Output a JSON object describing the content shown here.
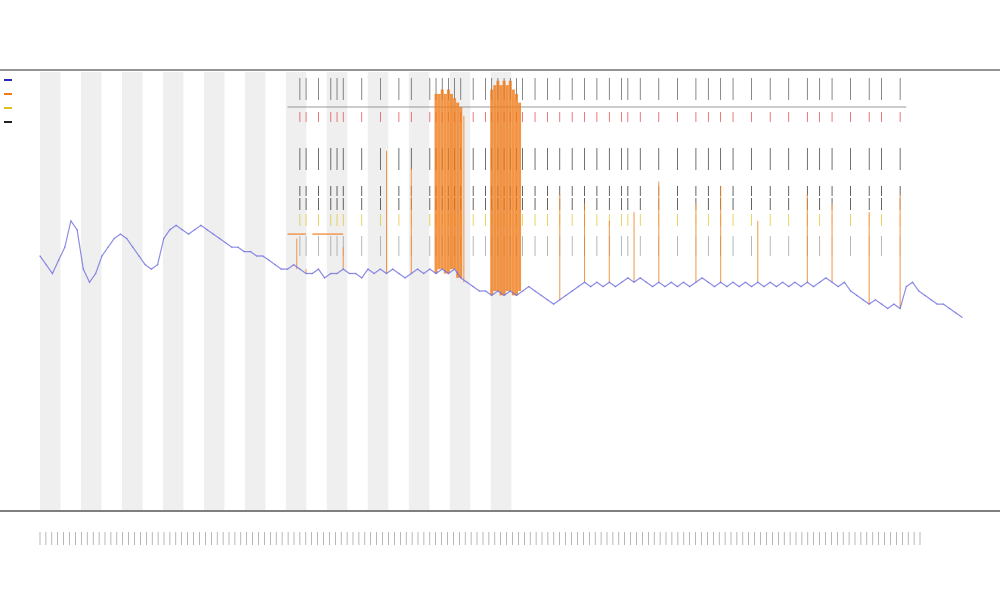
{
  "chart_data": {
    "type": "line",
    "title": "",
    "subtitle_1": "",
    "subtitle_2": "",
    "xlabel": "",
    "ylabel": "",
    "x_tick_count": 150,
    "band_count": 23,
    "series": [
      {
        "name": "",
        "color": "#6f6fe0",
        "values": [
          58,
          56,
          54,
          57,
          60,
          66,
          64,
          55,
          52,
          54,
          58,
          60,
          62,
          63,
          62,
          60,
          58,
          56,
          55,
          56,
          62,
          64,
          65,
          64,
          63,
          64,
          65,
          64,
          63,
          62,
          61,
          60,
          60,
          59,
          59,
          58,
          58,
          57,
          56,
          55,
          55,
          56,
          55,
          54,
          54,
          55,
          53,
          54,
          54,
          55,
          54,
          54,
          53,
          55,
          54,
          55,
          54,
          55,
          54,
          53,
          54,
          55,
          54,
          55,
          54,
          55,
          54,
          55,
          53,
          52,
          51,
          50,
          50,
          49,
          50,
          49,
          50,
          49,
          50,
          51,
          50,
          49,
          48,
          47,
          48,
          49,
          50,
          51,
          52,
          51,
          52,
          51,
          52,
          51,
          52,
          53,
          52,
          53,
          52,
          51,
          52,
          51,
          52,
          51,
          52,
          51,
          52,
          53,
          52,
          51,
          52,
          51,
          52,
          51,
          52,
          51,
          52,
          51,
          52,
          51,
          52,
          51,
          52,
          51,
          52,
          51,
          52,
          53,
          52,
          51,
          52,
          50,
          49,
          48,
          47,
          48,
          47,
          46,
          47,
          46,
          51,
          52,
          50,
          49,
          48,
          47,
          47,
          46,
          45,
          44
        ]
      },
      {
        "name": "",
        "color": "#f07a18",
        "values": [
          0,
          0,
          0,
          0,
          0,
          0,
          0,
          0,
          0,
          0,
          0,
          0,
          0,
          0,
          0,
          0,
          0,
          0,
          0,
          0,
          0,
          0,
          0,
          0,
          0,
          0,
          0,
          0,
          0,
          0,
          0,
          0,
          0,
          0,
          0,
          0,
          0,
          0,
          0,
          0,
          0,
          0,
          0,
          0,
          0,
          0,
          0,
          0,
          0,
          0,
          0,
          0,
          0,
          0,
          0,
          0,
          0,
          0,
          0,
          0,
          0,
          0,
          0,
          0,
          0,
          0,
          0,
          0,
          0,
          0,
          0,
          0,
          0,
          0,
          0,
          0,
          0,
          0,
          0,
          0,
          0,
          0,
          0,
          0,
          0,
          0,
          0,
          0,
          0,
          0,
          0,
          0,
          0,
          0,
          0,
          0,
          0,
          0,
          0,
          0,
          0,
          0,
          0,
          0,
          0,
          0,
          0,
          0,
          0,
          0,
          0,
          0,
          0,
          0,
          0,
          0,
          0,
          0,
          0,
          0,
          0,
          0,
          0,
          0,
          0,
          0,
          0,
          0,
          0,
          0,
          0,
          0,
          0,
          0,
          0,
          0,
          0,
          0,
          0,
          0,
          0,
          0,
          0,
          0,
          0,
          0,
          0,
          0,
          0,
          0
        ]
      }
    ],
    "spikes": [
      {
        "x": 41.5,
        "top": 62
      },
      {
        "x": 43,
        "top": 55
      },
      {
        "x": 49,
        "top": 60
      },
      {
        "x": 56,
        "top": 82
      },
      {
        "x": 60,
        "top": 78
      },
      {
        "x": 64,
        "top": 95
      },
      {
        "x": 64.5,
        "top": 95
      },
      {
        "x": 65,
        "top": 96
      },
      {
        "x": 65.5,
        "top": 95
      },
      {
        "x": 66,
        "top": 96
      },
      {
        "x": 66.5,
        "top": 95
      },
      {
        "x": 67,
        "top": 94
      },
      {
        "x": 67.5,
        "top": 93
      },
      {
        "x": 68,
        "top": 92
      },
      {
        "x": 68.5,
        "top": 90
      },
      {
        "x": 73,
        "top": 96
      },
      {
        "x": 73.5,
        "top": 97
      },
      {
        "x": 74,
        "top": 98
      },
      {
        "x": 74.5,
        "top": 97
      },
      {
        "x": 75,
        "top": 98
      },
      {
        "x": 75.5,
        "top": 97
      },
      {
        "x": 76,
        "top": 98
      },
      {
        "x": 76.5,
        "top": 96
      },
      {
        "x": 77,
        "top": 95
      },
      {
        "x": 77.5,
        "top": 93
      },
      {
        "x": 84,
        "top": 72
      },
      {
        "x": 88,
        "top": 70
      },
      {
        "x": 92,
        "top": 66
      },
      {
        "x": 96,
        "top": 68
      },
      {
        "x": 100,
        "top": 75
      },
      {
        "x": 106,
        "top": 70
      },
      {
        "x": 110,
        "top": 74
      },
      {
        "x": 116,
        "top": 66
      },
      {
        "x": 124,
        "top": 72
      },
      {
        "x": 128,
        "top": 70
      },
      {
        "x": 134,
        "top": 68
      },
      {
        "x": 139,
        "top": 72
      }
    ],
    "flat_segments": [
      {
        "x0": 40,
        "x1": 43,
        "y": 63
      },
      {
        "x0": 44,
        "x1": 49,
        "y": 63
      }
    ],
    "event_ticks": [
      42,
      43,
      45,
      47,
      48,
      49,
      52,
      55,
      58,
      60,
      63,
      64,
      65,
      66,
      67,
      68,
      70,
      72,
      73,
      74,
      75,
      76,
      77,
      78,
      80,
      82,
      84,
      86,
      88,
      90,
      92,
      94,
      95,
      97,
      100,
      103,
      106,
      108,
      110,
      112,
      115,
      118,
      121,
      124,
      126,
      128,
      131,
      134,
      136,
      139
    ],
    "ylim": [
      0,
      100
    ],
    "grid": false,
    "legend": [
      {
        "label": "",
        "color": "#2a2ab0"
      },
      {
        "label": "",
        "color": "#f07a18"
      },
      {
        "label": "",
        "color": "#e0c020"
      },
      {
        "label": "",
        "color": "#222222"
      }
    ],
    "legend_position": "top-left"
  }
}
